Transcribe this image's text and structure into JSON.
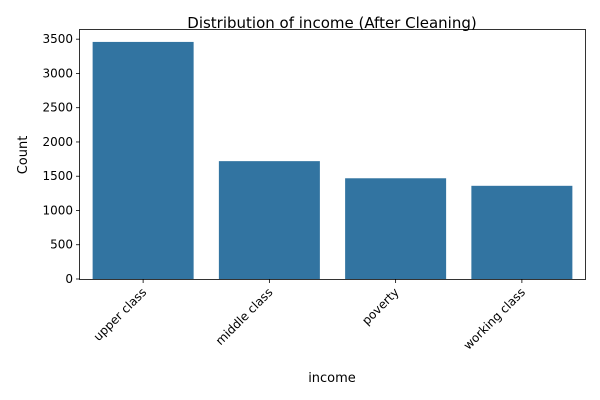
{
  "chart_data": {
    "type": "bar",
    "title": "Distribution of income (After Cleaning)",
    "xlabel": "income",
    "ylabel": "Count",
    "categories": [
      "upper class",
      "middle class",
      "poverty",
      "working class"
    ],
    "values": [
      3460,
      1720,
      1470,
      1360
    ],
    "ylim": [
      0,
      3634
    ],
    "yticks": [
      0,
      500,
      1000,
      1500,
      2000,
      2500,
      3000,
      3500
    ],
    "grid": false,
    "legend": "none",
    "bar_color": "#3274a1"
  }
}
